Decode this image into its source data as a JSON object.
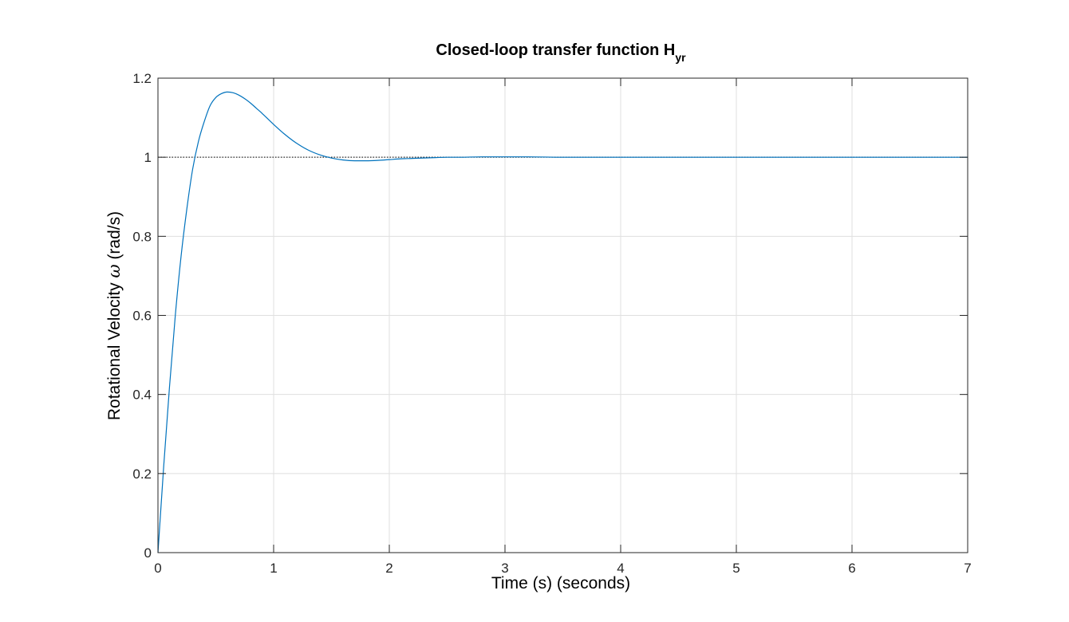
{
  "chart_data": {
    "type": "line",
    "title": {
      "main": "Closed-loop transfer function H",
      "subscript": "yr"
    },
    "xlabel": "Time (s) (seconds)",
    "ylabel": {
      "prefix": "Rotational Velocity ",
      "symbol": "ω",
      "suffix": " (rad/s)"
    },
    "xlim": [
      0,
      7
    ],
    "ylim": [
      0,
      1.2
    ],
    "x_ticks": [
      {
        "value": 0,
        "label": "0"
      },
      {
        "value": 1,
        "label": "1"
      },
      {
        "value": 2,
        "label": "2"
      },
      {
        "value": 3,
        "label": "3"
      },
      {
        "value": 4,
        "label": "4"
      },
      {
        "value": 5,
        "label": "5"
      },
      {
        "value": 6,
        "label": "6"
      },
      {
        "value": 7,
        "label": "7"
      }
    ],
    "y_ticks": [
      {
        "value": 0,
        "label": "0"
      },
      {
        "value": 0.2,
        "label": "0.2"
      },
      {
        "value": 0.4,
        "label": "0.4"
      },
      {
        "value": 0.6,
        "label": "0.6"
      },
      {
        "value": 0.8,
        "label": "0.8"
      },
      {
        "value": 1,
        "label": "1"
      },
      {
        "value": 1.2,
        "label": "1.2"
      }
    ],
    "grid": true,
    "reference_line": {
      "y": 1,
      "style": "dotted",
      "color": "#000000"
    },
    "series": [
      {
        "color": "#0072BD",
        "x": [
          0,
          0.05,
          0.1,
          0.15,
          0.2,
          0.25,
          0.3,
          0.35,
          0.4,
          0.45,
          0.5,
          0.55,
          0.6,
          0.65,
          0.7,
          0.75,
          0.8,
          0.85,
          0.9,
          0.95,
          1.0,
          1.1,
          1.2,
          1.3,
          1.4,
          1.5,
          1.6,
          1.7,
          1.8,
          1.9,
          2.0,
          2.1,
          2.2,
          2.3,
          2.4,
          2.5,
          2.6,
          2.8,
          3.0,
          3.2,
          3.5,
          4.0,
          5.0,
          6.0,
          7.0
        ],
        "y": [
          0,
          0.22,
          0.42,
          0.6,
          0.75,
          0.87,
          0.97,
          1.04,
          1.09,
          1.13,
          1.151,
          1.161,
          1.165,
          1.163,
          1.157,
          1.148,
          1.137,
          1.124,
          1.111,
          1.097,
          1.083,
          1.057,
          1.035,
          1.018,
          1.006,
          0.998,
          0.993,
          0.991,
          0.991,
          0.992,
          0.994,
          0.996,
          0.997,
          0.998,
          0.999,
          1.0,
          1.0,
          1.001,
          1.001,
          1.001,
          1.0,
          1.0,
          1.0,
          1.0,
          1.0
        ]
      }
    ]
  }
}
